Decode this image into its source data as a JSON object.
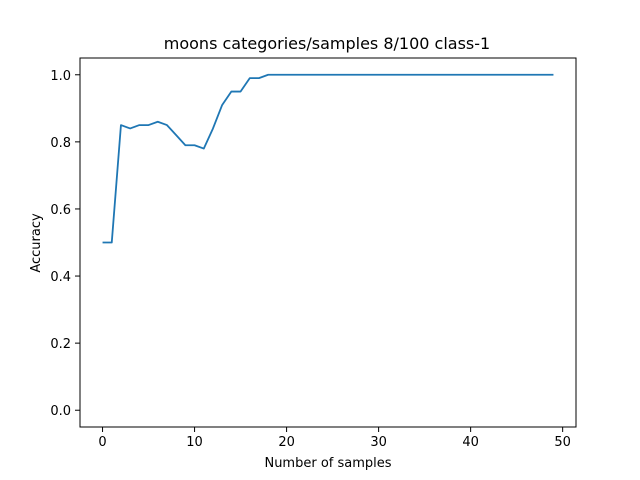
{
  "chart_data": {
    "type": "line",
    "title": "moons categories/samples 8/100 class-1",
    "xlabel": "Number of samples",
    "ylabel": "Accuracy",
    "xlim": [
      -2.45,
      51.45
    ],
    "ylim": [
      -0.05,
      1.05
    ],
    "xticks": [
      0,
      10,
      20,
      30,
      40,
      50
    ],
    "yticks": [
      0.0,
      0.2,
      0.4,
      0.6,
      0.8,
      1.0
    ],
    "xtick_labels": [
      "0",
      "10",
      "20",
      "30",
      "40",
      "50"
    ],
    "ytick_labels": [
      "0.0",
      "0.2",
      "0.4",
      "0.6",
      "0.8",
      "1.0"
    ],
    "grid": false,
    "series": [
      {
        "name": "accuracy",
        "color": "#1f77b4",
        "x": [
          0,
          1,
          2,
          3,
          4,
          5,
          6,
          7,
          8,
          9,
          10,
          11,
          12,
          13,
          14,
          15,
          16,
          17,
          18,
          19,
          20,
          21,
          22,
          23,
          24,
          25,
          26,
          27,
          28,
          29,
          30,
          31,
          32,
          33,
          34,
          35,
          36,
          37,
          38,
          39,
          40,
          41,
          42,
          43,
          44,
          45,
          46,
          47,
          48,
          49
        ],
        "values": [
          0.5,
          0.5,
          0.85,
          0.84,
          0.85,
          0.85,
          0.86,
          0.85,
          0.82,
          0.79,
          0.79,
          0.78,
          0.84,
          0.91,
          0.95,
          0.95,
          0.99,
          0.99,
          1.0,
          1.0,
          1.0,
          1.0,
          1.0,
          1.0,
          1.0,
          1.0,
          1.0,
          1.0,
          1.0,
          1.0,
          1.0,
          1.0,
          1.0,
          1.0,
          1.0,
          1.0,
          1.0,
          1.0,
          1.0,
          1.0,
          1.0,
          1.0,
          1.0,
          1.0,
          1.0,
          1.0,
          1.0,
          1.0,
          1.0,
          1.0
        ]
      }
    ]
  }
}
